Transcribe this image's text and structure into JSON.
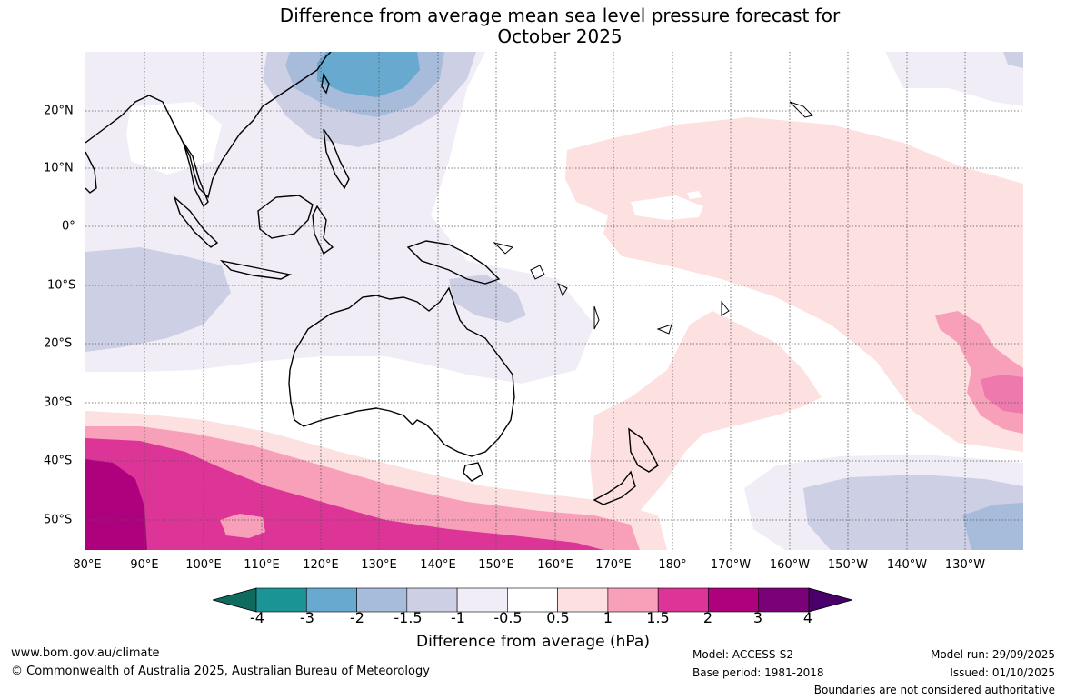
{
  "title_line1": "Difference from average mean sea level pressure forecast for",
  "title_line2": "October 2025",
  "lat_labels": [
    "20°N",
    "10°N",
    "0°",
    "10°S",
    "20°S",
    "30°S",
    "40°S",
    "50°S"
  ],
  "lon_labels": [
    "80°E",
    "90°E",
    "100°E",
    "110°E",
    "120°E",
    "130°E",
    "140°E",
    "150°E",
    "160°E",
    "170°E",
    "180°",
    "170°W",
    "160°W",
    "150°W",
    "140°W",
    "130°W"
  ],
  "colorbar": {
    "ticks": [
      "-4",
      "-3",
      "-2",
      "-1.5",
      "-1",
      "-0.5",
      "0.5",
      "1",
      "1.5",
      "2",
      "3",
      "4"
    ],
    "colors": [
      "#0f6b5e",
      "#1a9494",
      "#67a9cf",
      "#a7bcdb",
      "#cdd0e5",
      "#f1edf6",
      "#ffffff",
      "#fde0e0",
      "#f89fb9",
      "#dd3497",
      "#ae017e",
      "#7a0177",
      "#49006a"
    ],
    "label": "Difference from average (hPa)"
  },
  "footer": {
    "website": "www.bom.gov.au/climate",
    "copyright": "© Commonwealth of Australia 2025, Australian Bureau of Meteorology",
    "model": "Model: ACCESS-S2",
    "base_period": "Base period: 1981-2018",
    "model_run": "Model run: 29/09/2025",
    "issued": "Issued: 01/10/2025",
    "boundaries_note": "Boundaries are not considered authoritative"
  }
}
